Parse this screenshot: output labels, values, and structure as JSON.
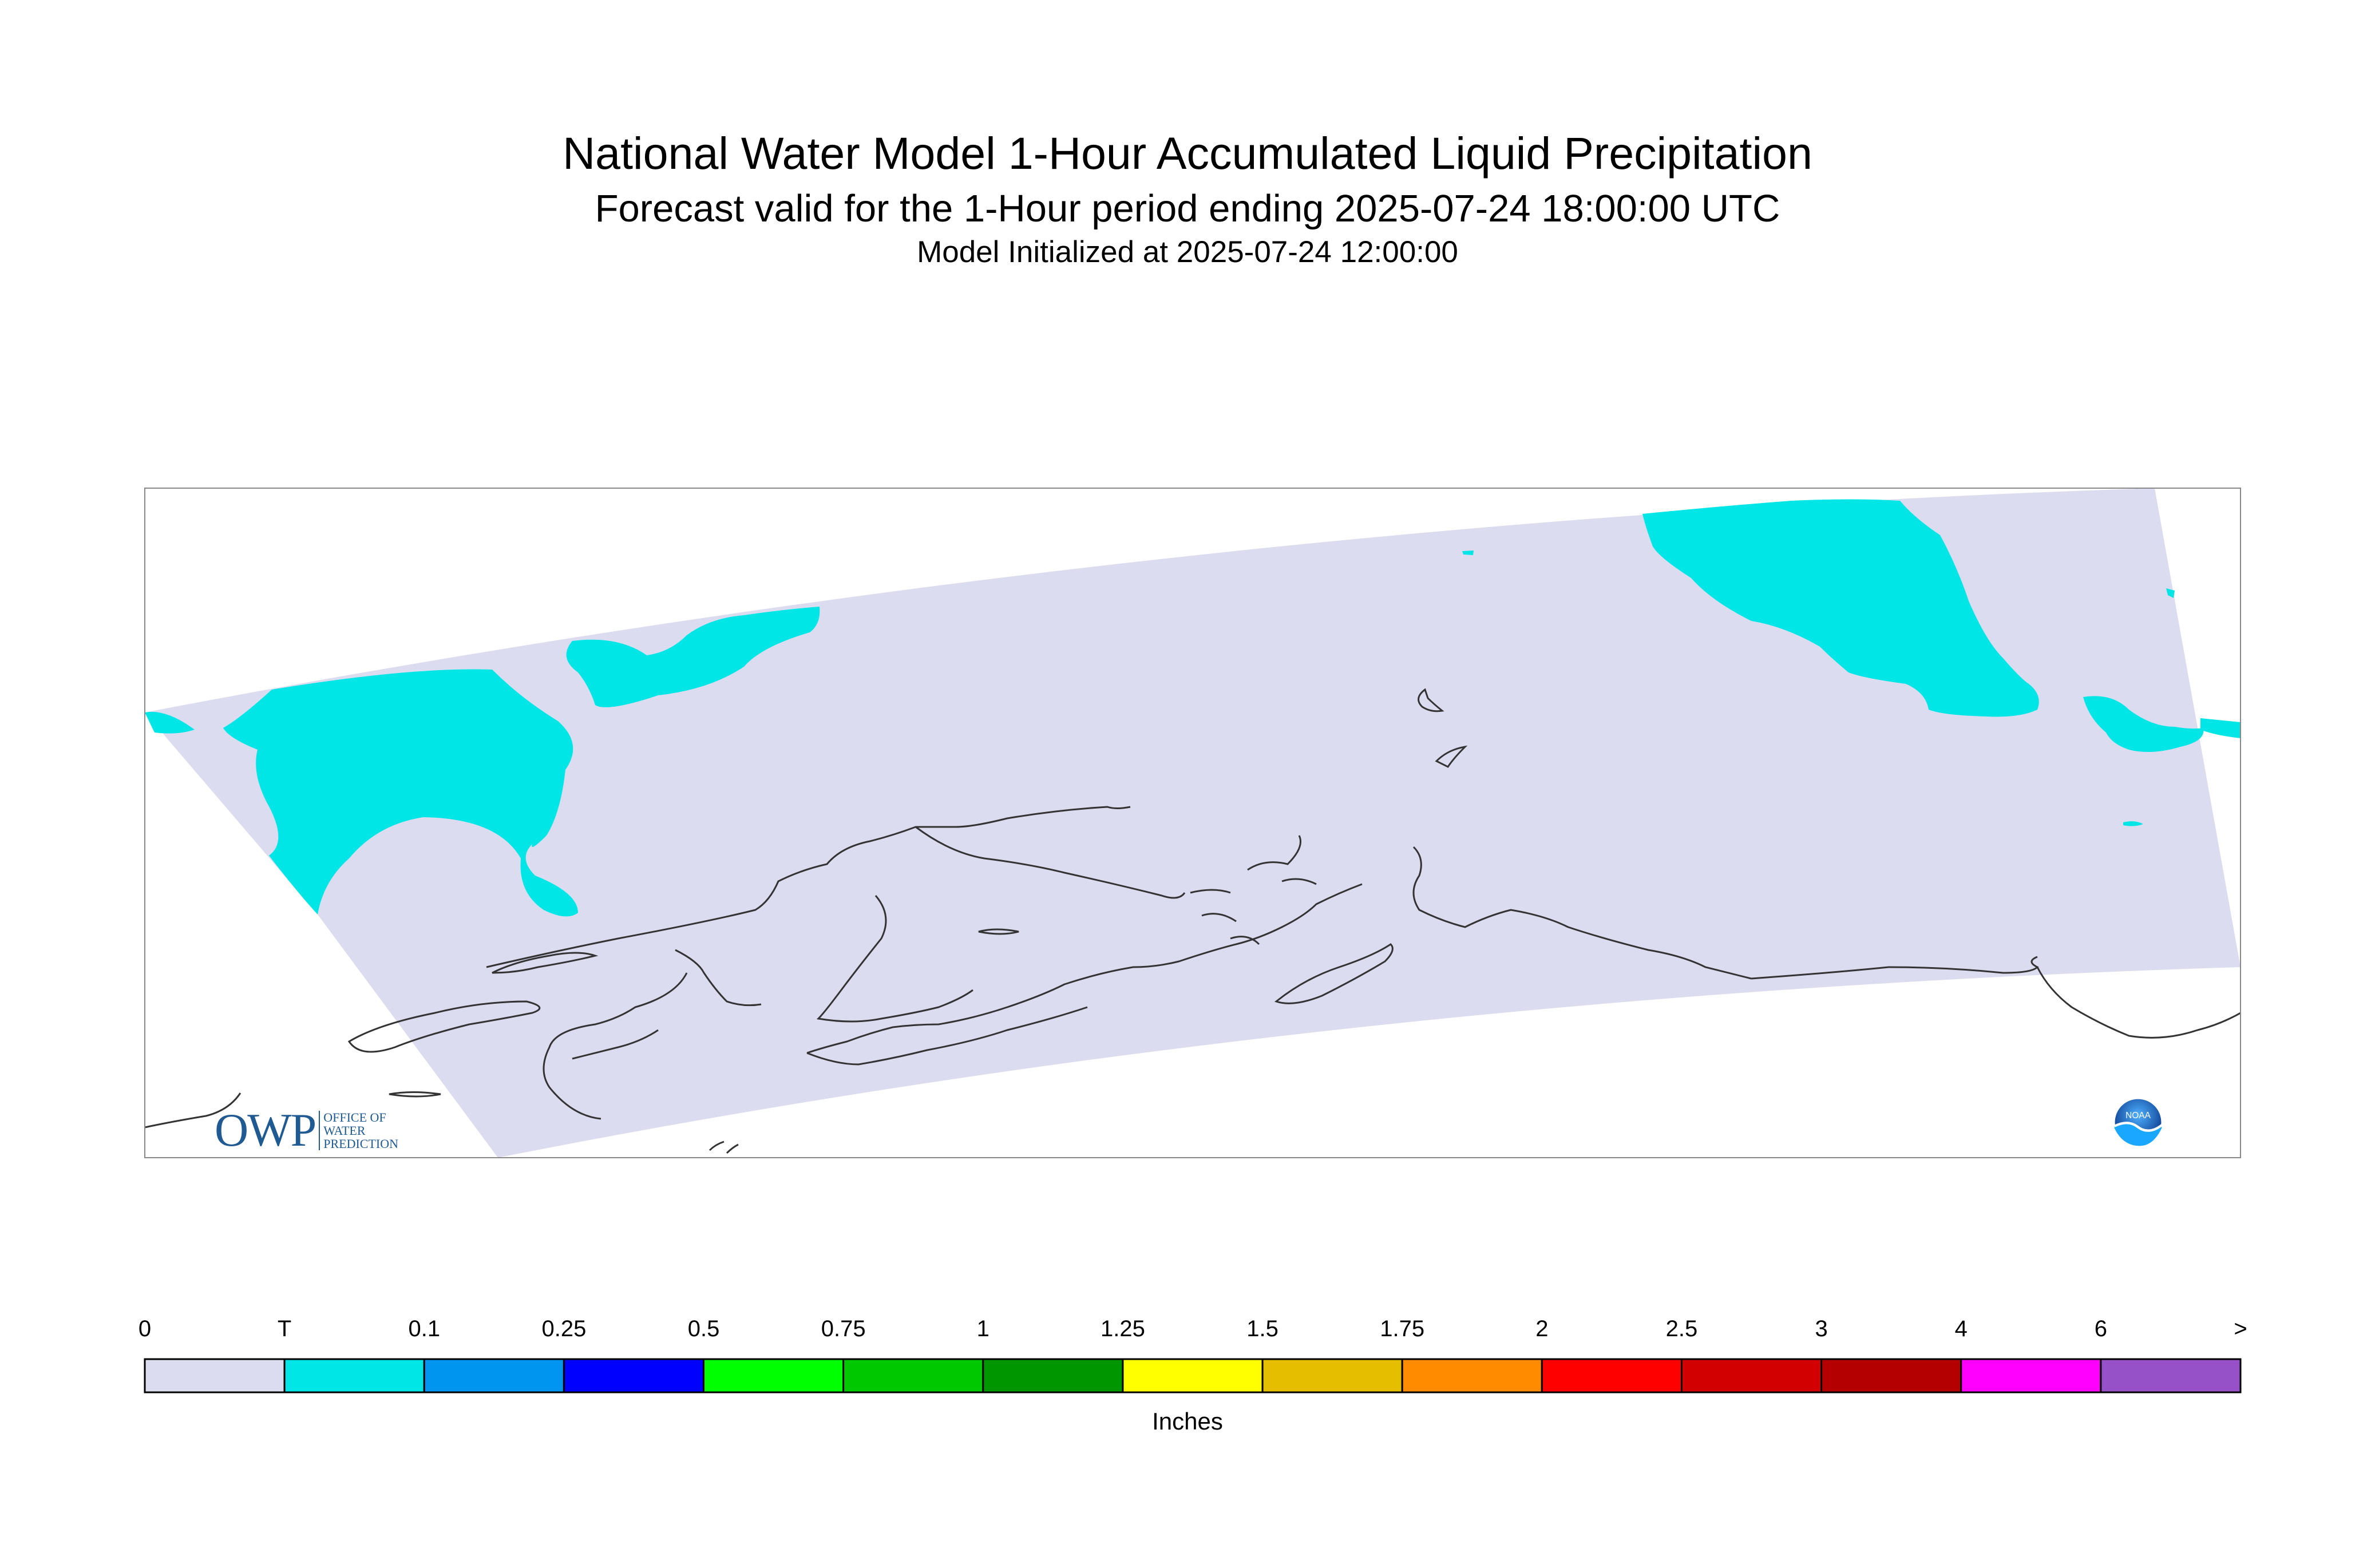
{
  "title": "National Water Model 1-Hour Accumulated Liquid Precipitation",
  "subtitle": "Forecast valid for the 1-Hour period ending 2025-07-24 18:00:00 UTC",
  "init_line": "Model Initialized at 2025-07-24 12:00:00",
  "map": {
    "region_color": "#dcdcf0",
    "precip_color": "#00e6e6",
    "coastline_color": "#333333",
    "frame_color": "#888888"
  },
  "colorbar": {
    "units": "Inches",
    "ticks": [
      "0",
      "T",
      "0.1",
      "0.25",
      "0.5",
      "0.75",
      "1",
      "1.25",
      "1.5",
      "1.75",
      "2",
      "2.5",
      "3",
      "4",
      "6",
      ">"
    ],
    "colors": [
      "#dcdcf0",
      "#00e6e6",
      "#0096f0",
      "#0000ff",
      "#00ff00",
      "#00c800",
      "#009600",
      "#ffff00",
      "#e6be00",
      "#ff8c00",
      "#ff0000",
      "#d20000",
      "#b40000",
      "#ff00ff",
      "#9650c8"
    ]
  },
  "logos": {
    "owp_main": "OWP",
    "owp_line1": "OFFICE OF",
    "owp_line2": "WATER",
    "owp_line3": "PREDICTION",
    "noaa_text": "NOAA",
    "noaa_icon": "noaa-emblem-icon"
  }
}
